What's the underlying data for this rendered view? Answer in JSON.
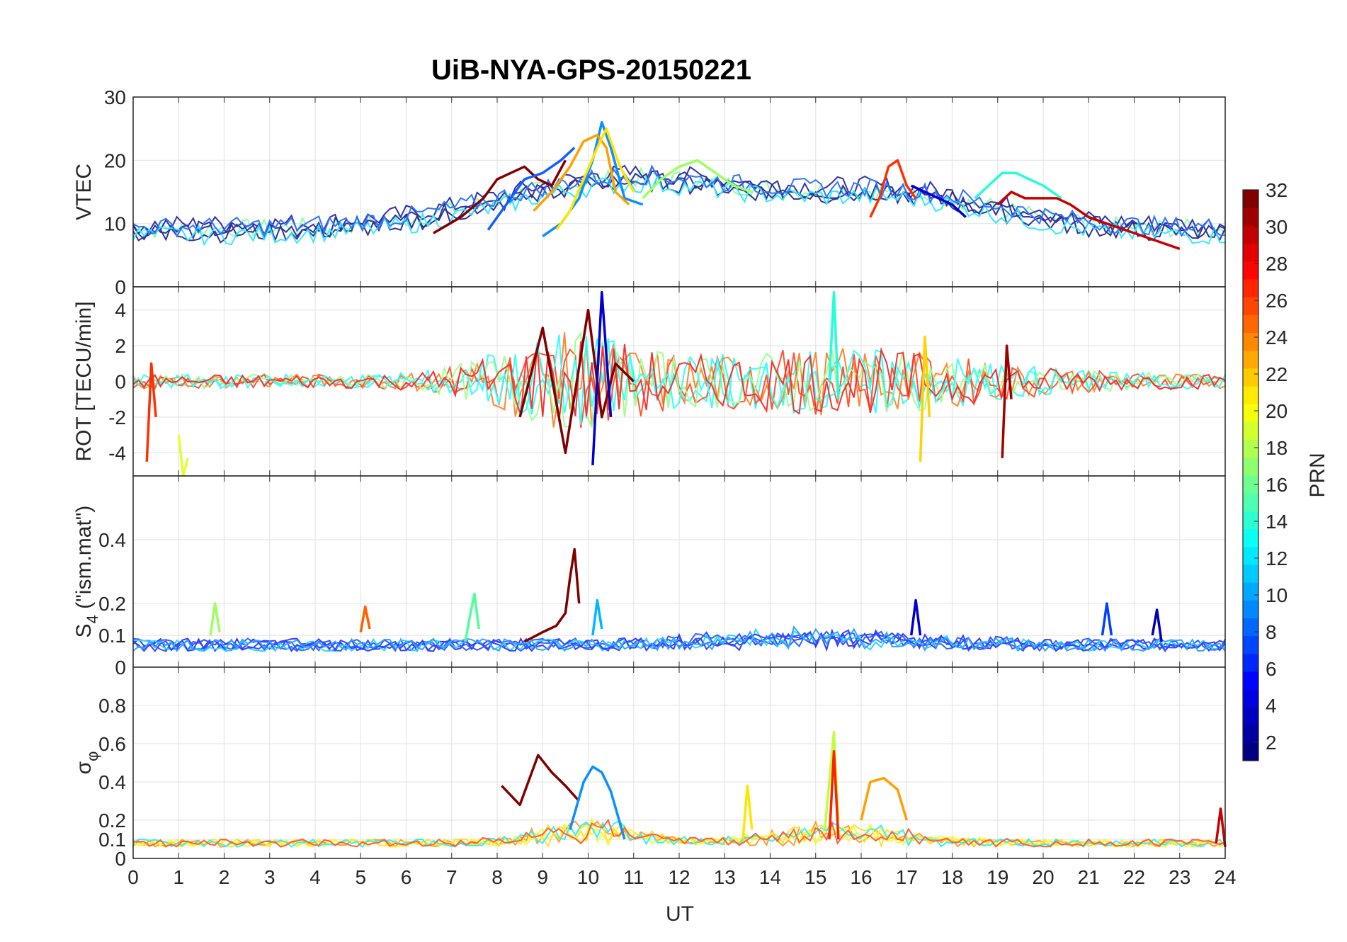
{
  "figure": {
    "title": "UiB-NYA-GPS-20150221",
    "xlabel": "UT",
    "x_ticks": [
      "0",
      "1",
      "2",
      "3",
      "4",
      "5",
      "6",
      "7",
      "8",
      "9",
      "10",
      "11",
      "12",
      "13",
      "14",
      "15",
      "16",
      "17",
      "18",
      "19",
      "20",
      "21",
      "22",
      "23",
      "24"
    ]
  },
  "colorbar": {
    "label": "PRN",
    "ticks": [
      "2",
      "4",
      "6",
      "8",
      "10",
      "12",
      "14",
      "16",
      "18",
      "20",
      "22",
      "24",
      "26",
      "28",
      "30",
      "32"
    ],
    "range": [
      1,
      32
    ],
    "colormap": "jet"
  },
  "panels": [
    {
      "key": "vtec",
      "ylabel": "VTEC",
      "yrange": [
        0,
        30
      ],
      "yticks": [
        "0",
        "10",
        "20",
        "30"
      ]
    },
    {
      "key": "rot",
      "ylabel": "ROT [TECU/min]",
      "yrange": [
        -5.3,
        5.3
      ],
      "yticks": [
        "-4",
        "-2",
        "0",
        "2",
        "4"
      ]
    },
    {
      "key": "s4",
      "ylabel_main": "S",
      "ylabel_sub": "4",
      "ylabel_rest": " (\"ism.mat\")",
      "yrange": [
        0,
        0.6
      ],
      "yticks": [
        "0",
        "0.1",
        "0.2",
        "0.4"
      ]
    },
    {
      "key": "sigma",
      "ylabel_main": "σ",
      "ylabel_sub": "φ",
      "yrange": [
        0,
        1
      ],
      "yticks": [
        "0",
        "0.1",
        "0.2",
        "0.4",
        "0.6",
        "0.8"
      ]
    }
  ],
  "chart_data": [
    {
      "type": "line",
      "title": "UiB-NYA-GPS-20150221",
      "xlabel": "UT",
      "ylabel": "VTEC",
      "xlim": [
        0,
        24
      ],
      "ylim": [
        0,
        30
      ],
      "grid": true,
      "series": [
        {
          "prn": 32,
          "color": "#800000",
          "x": [
            6.6,
            7.2,
            7.7,
            8.0,
            8.3,
            8.6,
            8.9,
            9.2,
            9.5
          ],
          "y": [
            8.5,
            11,
            14,
            17,
            18,
            19,
            17,
            16,
            20
          ]
        },
        {
          "prn": 9,
          "color": "#1060ff",
          "x": [
            7.8,
            8.2,
            8.6,
            9.0,
            9.4,
            9.7
          ],
          "y": [
            9,
            13,
            17,
            18,
            20,
            22
          ]
        },
        {
          "prn": 10,
          "color": "#0a90ff",
          "x": [
            9.0,
            9.4,
            9.8,
            10.1,
            10.3,
            10.5,
            10.8,
            11.2
          ],
          "y": [
            8,
            10,
            14,
            20,
            26,
            22,
            14,
            13
          ]
        },
        {
          "prn": 22,
          "color": "#ffa000",
          "x": [
            8.8,
            9.2,
            9.6,
            9.9,
            10.2,
            10.4,
            10.6,
            10.9
          ],
          "y": [
            12,
            15,
            19,
            23,
            24,
            22,
            15,
            13
          ]
        },
        {
          "prn": 20,
          "color": "#ffe600",
          "x": [
            9.3,
            9.6,
            9.9,
            10.2,
            10.4,
            10.7,
            11.0
          ],
          "y": [
            9,
            12,
            17,
            22,
            25,
            19,
            15
          ]
        },
        {
          "prn": 16,
          "color": "#9dff60",
          "x": [
            11.2,
            11.6,
            12.0,
            12.4,
            12.8,
            13.2,
            13.6
          ],
          "y": [
            14,
            17,
            19,
            20,
            18,
            16,
            15
          ]
        },
        {
          "prn": 12,
          "color": "#24ffd8",
          "x": [
            18.5,
            18.8,
            19.1,
            19.4,
            19.7,
            20.0,
            20.4
          ],
          "y": [
            14,
            16,
            18,
            18,
            17,
            16,
            14
          ]
        },
        {
          "prn": 30,
          "color": "#c80000",
          "x": [
            19.0,
            19.3,
            19.6,
            20.0,
            20.3,
            20.6,
            21.0,
            21.4,
            21.8,
            22.2,
            22.6,
            23.0
          ],
          "y": [
            13,
            15,
            14,
            14,
            14,
            13,
            11,
            10,
            9,
            8,
            7,
            6
          ]
        },
        {
          "prn": 27,
          "color": "#ff3000",
          "x": [
            16.2,
            16.4,
            16.6,
            16.8,
            17.0,
            17.2
          ],
          "y": [
            11,
            14,
            19,
            20,
            16,
            14
          ]
        },
        {
          "prn": 3,
          "color": "#0000d0",
          "x": [
            17.1,
            17.4,
            17.7,
            18.0,
            18.3
          ],
          "y": [
            16,
            15,
            14,
            13,
            11
          ]
        }
      ]
    },
    {
      "type": "line",
      "xlabel": "UT",
      "ylabel": "ROT [TECU/min]",
      "xlim": [
        0,
        24
      ],
      "ylim": [
        -5.3,
        5.3
      ],
      "grid": true,
      "series": [
        {
          "prn": 32,
          "color": "#800000",
          "x": [
            8.5,
            9.0,
            9.5,
            10.0,
            10.3,
            10.6,
            11.0
          ],
          "y": [
            -2.0,
            3.0,
            -4.0,
            4.0,
            -2.0,
            1.0,
            0.0
          ]
        },
        {
          "prn": 3,
          "color": "#0000d0",
          "x": [
            10.1,
            10.3,
            10.5
          ],
          "y": [
            -4.7,
            5.0,
            -2.0
          ]
        },
        {
          "prn": 18,
          "color": "#e4ff30",
          "x": [
            1.0,
            1.1,
            1.2
          ],
          "y": [
            -3.0,
            -5.3,
            -4.3
          ]
        },
        {
          "prn": 28,
          "color": "#ff3000",
          "x": [
            0.3,
            0.4,
            0.5
          ],
          "y": [
            -4.5,
            1.0,
            -2.0
          ]
        },
        {
          "prn": 12,
          "color": "#24ffd8",
          "x": [
            15.3,
            15.4,
            15.5
          ],
          "y": [
            0.0,
            5.0,
            -1.0
          ]
        },
        {
          "prn": 21,
          "color": "#ffd200",
          "x": [
            17.3,
            17.4,
            17.5
          ],
          "y": [
            -4.5,
            2.5,
            -2.0
          ]
        },
        {
          "prn": 31,
          "color": "#a00000",
          "x": [
            19.1,
            19.2,
            19.3
          ],
          "y": [
            -4.3,
            2.0,
            -1.0
          ]
        }
      ]
    },
    {
      "type": "line",
      "xlabel": "UT",
      "ylabel": "S4 (\"ism.mat\")",
      "xlim": [
        0,
        24
      ],
      "ylim": [
        0,
        0.6
      ],
      "grid": true,
      "series": [
        {
          "prn": 32,
          "color": "#800000",
          "x": [
            8.6,
            9.0,
            9.3,
            9.5,
            9.6,
            9.7,
            9.8
          ],
          "y": [
            0.08,
            0.11,
            0.13,
            0.17,
            0.28,
            0.37,
            0.2
          ]
        },
        {
          "prn": 14,
          "color": "#50ff9c",
          "x": [
            7.3,
            7.4,
            7.5,
            7.6
          ],
          "y": [
            0.08,
            0.16,
            0.23,
            0.12
          ]
        },
        {
          "prn": 16,
          "color": "#9dff60",
          "x": [
            1.7,
            1.8,
            1.9
          ],
          "y": [
            0.1,
            0.2,
            0.11
          ]
        },
        {
          "prn": 11,
          "color": "#00b8ff",
          "x": [
            10.1,
            10.2,
            10.3
          ],
          "y": [
            0.1,
            0.21,
            0.12
          ]
        },
        {
          "prn": 3,
          "color": "#0000d0",
          "x": [
            17.1,
            17.2,
            17.3
          ],
          "y": [
            0.1,
            0.21,
            0.1
          ]
        },
        {
          "prn": 25,
          "color": "#ff6000",
          "x": [
            5.0,
            5.1,
            5.2
          ],
          "y": [
            0.11,
            0.19,
            0.12
          ]
        },
        {
          "prn": 6,
          "color": "#0040ff",
          "x": [
            21.3,
            21.4,
            21.5
          ],
          "y": [
            0.1,
            0.2,
            0.1
          ]
        },
        {
          "prn": 2,
          "color": "#0000b0",
          "x": [
            22.4,
            22.5,
            22.6
          ],
          "y": [
            0.1,
            0.18,
            0.08
          ]
        }
      ]
    },
    {
      "type": "line",
      "xlabel": "UT",
      "ylabel": "σφ",
      "xlim": [
        0,
        24
      ],
      "ylim": [
        0,
        1
      ],
      "grid": true,
      "series": [
        {
          "prn": 32,
          "color": "#800000",
          "x": [
            8.1,
            8.5,
            8.9,
            9.2,
            9.5,
            9.8
          ],
          "y": [
            0.38,
            0.28,
            0.54,
            0.45,
            0.38,
            0.3
          ]
        },
        {
          "prn": 10,
          "color": "#0a90ff",
          "x": [
            9.6,
            9.9,
            10.1,
            10.3,
            10.5,
            10.8
          ],
          "y": [
            0.15,
            0.4,
            0.48,
            0.45,
            0.35,
            0.1
          ]
        },
        {
          "prn": 17,
          "color": "#c0ff40",
          "x": [
            15.2,
            15.3,
            15.4,
            15.5
          ],
          "y": [
            0.15,
            0.4,
            0.66,
            0.2
          ]
        },
        {
          "prn": 28,
          "color": "#ff2000",
          "x": [
            15.3,
            15.4,
            15.5
          ],
          "y": [
            0.1,
            0.56,
            0.1
          ]
        },
        {
          "prn": 22,
          "color": "#ffa000",
          "x": [
            16.0,
            16.2,
            16.5,
            16.8,
            17.0
          ],
          "y": [
            0.2,
            0.4,
            0.42,
            0.36,
            0.2
          ]
        },
        {
          "prn": 20,
          "color": "#ffe600",
          "x": [
            13.4,
            13.5,
            13.6
          ],
          "y": [
            0.1,
            0.38,
            0.15
          ]
        },
        {
          "prn": 30,
          "color": "#c80000",
          "x": [
            23.8,
            23.9,
            24.0
          ],
          "y": [
            0.08,
            0.26,
            0.06
          ]
        }
      ]
    }
  ]
}
